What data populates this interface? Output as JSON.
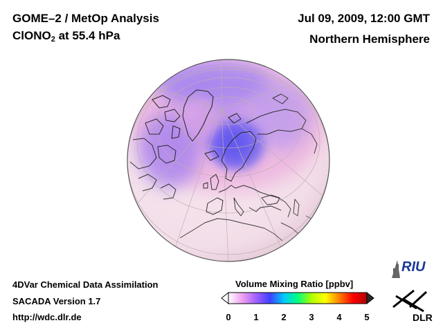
{
  "header": {
    "title_line1": "GOME–2 / MetOp Analysis",
    "species_prefix": "ClONO",
    "species_sub": "2",
    "species_suffix": " at 55.4 hPa",
    "date_time": "Jul 09, 2009, 12:00 GMT",
    "region": "Northern Hemisphere"
  },
  "footer": {
    "line1": "4DVar Chemical Data Assimilation",
    "line2": "SACADA Version 1.7",
    "line3": "http://wdc.dlr.de"
  },
  "colorbar": {
    "title": "Volume Mixing Ratio [ppbv]",
    "ticks": [
      "0",
      "1",
      "2",
      "3",
      "4",
      "5"
    ],
    "colors": [
      "#ffffff",
      "#f0a0f0",
      "#a060ff",
      "#4040ff",
      "#00c8ff",
      "#00ff80",
      "#b0ff00",
      "#ffff00",
      "#ff8000",
      "#ff0000",
      "#b00000"
    ]
  },
  "logos": {
    "riu": "RIU",
    "dlr": "DLR"
  },
  "map": {
    "projection": "orthographic",
    "center": "North Pole, Europe",
    "background_color": "#f5e3ec",
    "high_color": "#6a5cf0"
  }
}
